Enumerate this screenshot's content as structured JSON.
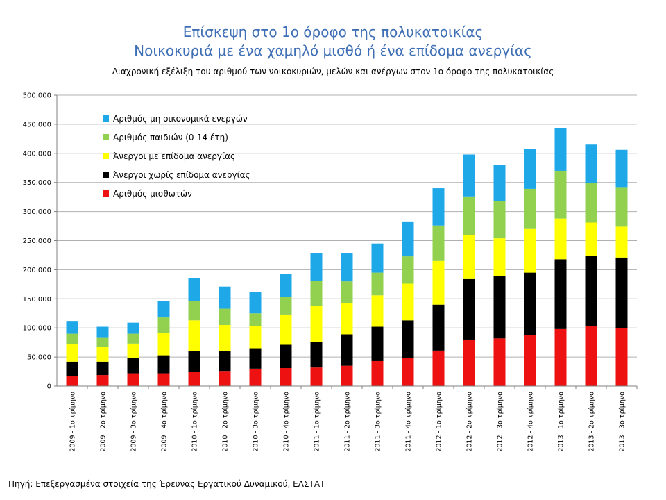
{
  "header": {
    "title_line1": "Επίσκεψη στο 1ο όροφο της πολυκατοικίας",
    "title_line2": "Νοικοκυριά με ένα χαμηλό μισθό ή ένα επίδομα ανεργίας",
    "subtitle": "Διαχρονική εξέλιξη του αριθμού των νοικοκυριών, μελών και ανέργων στον 1ο όροφο της πολυκατοικίας"
  },
  "footer": {
    "source": "Πηγή: Επεξεργασμένα στοιχεία της Έρευνας Εργατικού Δυναμικού, ΕΛΣΤΑΤ"
  },
  "chart_data": {
    "type": "bar",
    "stacked": true,
    "title": "",
    "xlabel": "",
    "ylabel": "",
    "ylim": [
      0,
      500000
    ],
    "yticks": [
      0,
      50000,
      100000,
      150000,
      200000,
      250000,
      300000,
      350000,
      400000,
      450000,
      500000
    ],
    "ytick_labels": [
      "0",
      "50.000",
      "100.000",
      "150.000",
      "200.000",
      "250.000",
      "300.000",
      "350.000",
      "400.000",
      "450.000",
      "500.000"
    ],
    "grid": true,
    "legend_position": "top-left",
    "categories": [
      "2009 - 1ο τρίμηνο",
      "2009 - 2ο τρίμηνο",
      "2009 - 3ο τρίμηνο",
      "2009 - 4ο τρίμηνο",
      "2010 - 1ο τρίμηνο",
      "2010 - 2ο τρίμηνο",
      "2010 - 3ο τρίμηνο",
      "2010 - 4ο τρίμηνο",
      "2011 - 1ο τρίμηνο",
      "2011 - 2ο τρίμηνο",
      "2011 - 3ο τρίμηνο",
      "2011 - 4ο τρίμηνο",
      "2012 - 1ο τρίμηνο",
      "2012 - 2ο τρίμηνο",
      "2012 - 3ο τρίμηνο",
      "2012 - 4ο τρίμηνο",
      "2013 - 1ο τρίμηνο",
      "2013 - 2ο τρίμηνο",
      "2013 - 3ο τρίμηνο"
    ],
    "series": [
      {
        "name": "Αριθμός μισθωτών",
        "color": "#ee1111",
        "values": [
          17000,
          19000,
          22000,
          22000,
          25000,
          26000,
          30000,
          31000,
          32000,
          35000,
          43000,
          48000,
          61000,
          80000,
          82000,
          88000,
          98000,
          103000,
          100000
        ]
      },
      {
        "name": "Άνεργοι χωρίς επίδομα ανεργίας",
        "color": "#000000",
        "values": [
          25000,
          23000,
          27000,
          31000,
          35000,
          34000,
          35000,
          40000,
          44000,
          54000,
          59000,
          65000,
          79000,
          104000,
          107000,
          107000,
          120000,
          121000,
          121000
        ]
      },
      {
        "name": "Άνεργοι με επίδομα ανεργίας",
        "color": "#ffff00",
        "values": [
          30000,
          25000,
          24000,
          38000,
          53000,
          45000,
          38000,
          52000,
          62000,
          54000,
          54000,
          63000,
          75000,
          75000,
          65000,
          75000,
          70000,
          57000,
          53000
        ]
      },
      {
        "name": "Αριθμός παιδιών (0-14 έτη)",
        "color": "#92d050",
        "values": [
          18000,
          17000,
          17000,
          27000,
          33000,
          28000,
          22000,
          30000,
          43000,
          37000,
          39000,
          47000,
          61000,
          67000,
          64000,
          69000,
          82000,
          68000,
          68000
        ]
      },
      {
        "name": "Αριθμός μη οικονομικά ενεργών",
        "color": "#1fa8e8",
        "values": [
          22000,
          18000,
          19000,
          28000,
          40000,
          38000,
          37000,
          40000,
          48000,
          49000,
          50000,
          60000,
          64000,
          72000,
          62000,
          69000,
          73000,
          66000,
          64000
        ]
      }
    ],
    "legend_order": [
      4,
      3,
      2,
      1,
      0
    ]
  }
}
